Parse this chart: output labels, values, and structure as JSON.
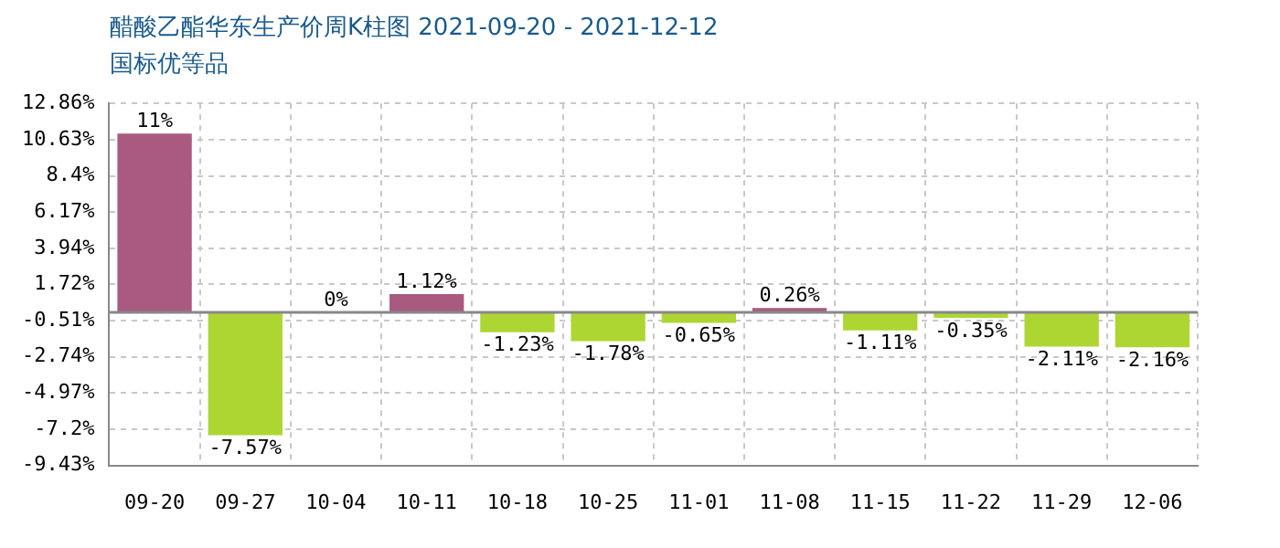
{
  "chart_data": {
    "type": "bar",
    "title": "醋酸乙酯华东生产价周K柱图 2021-09-20 - 2021-12-12",
    "subtitle": "国标优等品",
    "categories": [
      "09-20",
      "09-27",
      "10-04",
      "10-11",
      "10-18",
      "10-25",
      "11-01",
      "11-08",
      "11-15",
      "11-22",
      "11-29",
      "12-06"
    ],
    "values": [
      11,
      -7.57,
      0,
      1.12,
      -1.23,
      -1.78,
      -0.65,
      0.26,
      -1.11,
      -0.35,
      -2.11,
      -2.16
    ],
    "value_labels": [
      "11%",
      "-7.57%",
      "0%",
      "1.12%",
      "-1.23%",
      "-1.78%",
      "-0.65%",
      "0.26%",
      "-1.11%",
      "-0.35%",
      "-2.11%",
      "-2.16%"
    ],
    "colors": [
      "#aa5a80",
      "#aed633",
      "#aa5a80",
      "#aa5a80",
      "#aed633",
      "#aed633",
      "#aed633",
      "#aa5a80",
      "#aed633",
      "#aed633",
      "#aed633",
      "#aed633"
    ],
    "ylim": [
      -9.43,
      12.86
    ],
    "yticks": [
      {
        "value": 12.86,
        "label": "12.86%"
      },
      {
        "value": 10.63,
        "label": "10.63%"
      },
      {
        "value": 8.4,
        "label": "8.4%"
      },
      {
        "value": 6.17,
        "label": "6.17%"
      },
      {
        "value": 3.94,
        "label": "3.94%"
      },
      {
        "value": 1.72,
        "label": "1.72%"
      },
      {
        "value": -0.51,
        "label": "-0.51%"
      },
      {
        "value": -2.74,
        "label": "-2.74%"
      },
      {
        "value": -4.97,
        "label": "-4.97%"
      },
      {
        "value": -7.2,
        "label": "-7.2%"
      },
      {
        "value": -9.43,
        "label": "-9.43%"
      }
    ],
    "grid": true,
    "legend": false
  }
}
